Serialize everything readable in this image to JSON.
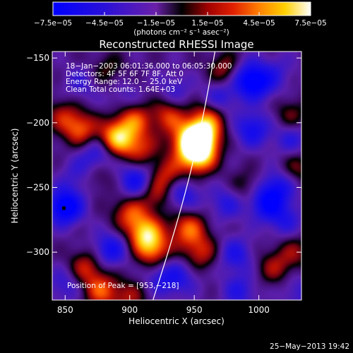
{
  "chart_data": {
    "type": "heatmap",
    "title": "Reconstructed RHESSI Image",
    "xlabel": "Heliocentric X (arcsec)",
    "ylabel": "Heliocentric Y (arcsec)",
    "xlim": [
      840,
      1033
    ],
    "ylim": [
      -337,
      -145
    ],
    "x_ticks": [
      850,
      900,
      950,
      1000
    ],
    "x_tick_labels": [
      "850",
      "900",
      "950",
      "1000"
    ],
    "y_ticks": [
      -150,
      -200,
      -250,
      -300
    ],
    "y_tick_labels": [
      "−150",
      "−200",
      "−250",
      "−300"
    ],
    "colorbar": {
      "range": [
        -7.5e-05,
        7.5e-05
      ],
      "tick_values": [
        -7.5e-05,
        -4.5e-05,
        -1.5e-05,
        1.5e-05,
        4.5e-05,
        7.5e-05
      ],
      "tick_labels": [
        "−7.5e−05",
        "−4.5e−05",
        "−1.5e−05",
        "1.5e−05",
        "4.5e−05",
        "7.5e−05"
      ],
      "units": "(photons cm⁻² s⁻¹ asec⁻²)"
    },
    "annotations": [
      "18−Jan−2003 06:01:36.000 to 06:05:30.000",
      "Detectors: 4F 5F 6F 7F 8F, Att 0",
      "Energy Range: 12.0 − 25.0 keV",
      "Clean     Total counts: 1.64E+03"
    ],
    "peak_label": "Position of Peak = [953,−218]",
    "peak_position": [
      953,
      -218
    ],
    "limb_curve": [
      [
        918,
        -337
      ],
      [
        933,
        -290
      ],
      [
        947,
        -240
      ],
      [
        958,
        -190
      ],
      [
        966,
        -145
      ]
    ],
    "marker_point": [
      849,
      -266
    ],
    "blobs": [
      {
        "x": 955,
        "y": -212,
        "v": 1.0
      },
      {
        "x": 953,
        "y": -226,
        "v": 0.85
      },
      {
        "x": 945,
        "y": -215,
        "v": 0.65
      },
      {
        "x": 960,
        "y": -198,
        "v": 0.55
      },
      {
        "x": 890,
        "y": -212,
        "v": 0.85
      },
      {
        "x": 903,
        "y": -198,
        "v": 0.55
      },
      {
        "x": 908,
        "y": -220,
        "v": 0.45
      },
      {
        "x": 912,
        "y": -285,
        "v": 0.75
      },
      {
        "x": 918,
        "y": -298,
        "v": 0.6
      },
      {
        "x": 900,
        "y": -270,
        "v": 0.5
      },
      {
        "x": 945,
        "y": -282,
        "v": 0.6
      },
      {
        "x": 955,
        "y": -300,
        "v": 0.45
      },
      {
        "x": 930,
        "y": -195,
        "v": 0.5
      },
      {
        "x": 930,
        "y": -240,
        "v": 0.45
      },
      {
        "x": 920,
        "y": -255,
        "v": 0.4
      },
      {
        "x": 862,
        "y": -205,
        "v": 0.55
      },
      {
        "x": 848,
        "y": -195,
        "v": 0.35
      },
      {
        "x": 866,
        "y": -312,
        "v": 0.45
      },
      {
        "x": 878,
        "y": -330,
        "v": 0.55
      },
      {
        "x": 900,
        "y": -335,
        "v": 0.35
      },
      {
        "x": 975,
        "y": -160,
        "v": 0.45
      },
      {
        "x": 1025,
        "y": -195,
        "v": 0.3
      },
      {
        "x": 1030,
        "y": -235,
        "v": 0.3
      },
      {
        "x": 1028,
        "y": -300,
        "v": 0.3
      },
      {
        "x": 1012,
        "y": -312,
        "v": 0.35
      },
      {
        "x": 990,
        "y": -250,
        "v": 0.25
      },
      {
        "x": 985,
        "y": -330,
        "v": 0.2
      },
      {
        "x": 875,
        "y": -240,
        "v": 0.25
      },
      {
        "x": 883,
        "y": -160,
        "v": 0.25
      },
      {
        "x": 850,
        "y": -265,
        "v": -0.8
      },
      {
        "x": 875,
        "y": -225,
        "v": -0.45
      },
      {
        "x": 905,
        "y": -245,
        "v": -0.55
      },
      {
        "x": 885,
        "y": -298,
        "v": -0.5
      },
      {
        "x": 925,
        "y": -320,
        "v": -0.35
      },
      {
        "x": 935,
        "y": -175,
        "v": -0.25
      },
      {
        "x": 940,
        "y": -255,
        "v": -0.45
      },
      {
        "x": 940,
        "y": -320,
        "v": -0.3
      },
      {
        "x": 970,
        "y": -180,
        "v": -0.35
      },
      {
        "x": 975,
        "y": -262,
        "v": -0.35
      },
      {
        "x": 982,
        "y": -302,
        "v": -0.4
      },
      {
        "x": 990,
        "y": -165,
        "v": -0.55
      },
      {
        "x": 995,
        "y": -205,
        "v": -0.5
      },
      {
        "x": 1000,
        "y": -170,
        "v": -0.45
      },
      {
        "x": 1005,
        "y": -262,
        "v": -0.55
      },
      {
        "x": 985,
        "y": -330,
        "v": -0.55
      },
      {
        "x": 1015,
        "y": -250,
        "v": -0.45
      },
      {
        "x": 1020,
        "y": -275,
        "v": -0.35
      },
      {
        "x": 1025,
        "y": -212,
        "v": -0.35
      },
      {
        "x": 1015,
        "y": -160,
        "v": -0.2
      },
      {
        "x": 862,
        "y": -170,
        "v": -0.25
      },
      {
        "x": 860,
        "y": -240,
        "v": -0.25
      },
      {
        "x": 850,
        "y": -325,
        "v": -0.3
      },
      {
        "x": 1030,
        "y": -330,
        "v": -0.25
      },
      {
        "x": 895,
        "y": -180,
        "v": -0.2
      }
    ]
  },
  "footer": {
    "date": "25−May−2013 19:42"
  },
  "colors": {
    "background": "#000000",
    "foreground": "#ffffff"
  }
}
